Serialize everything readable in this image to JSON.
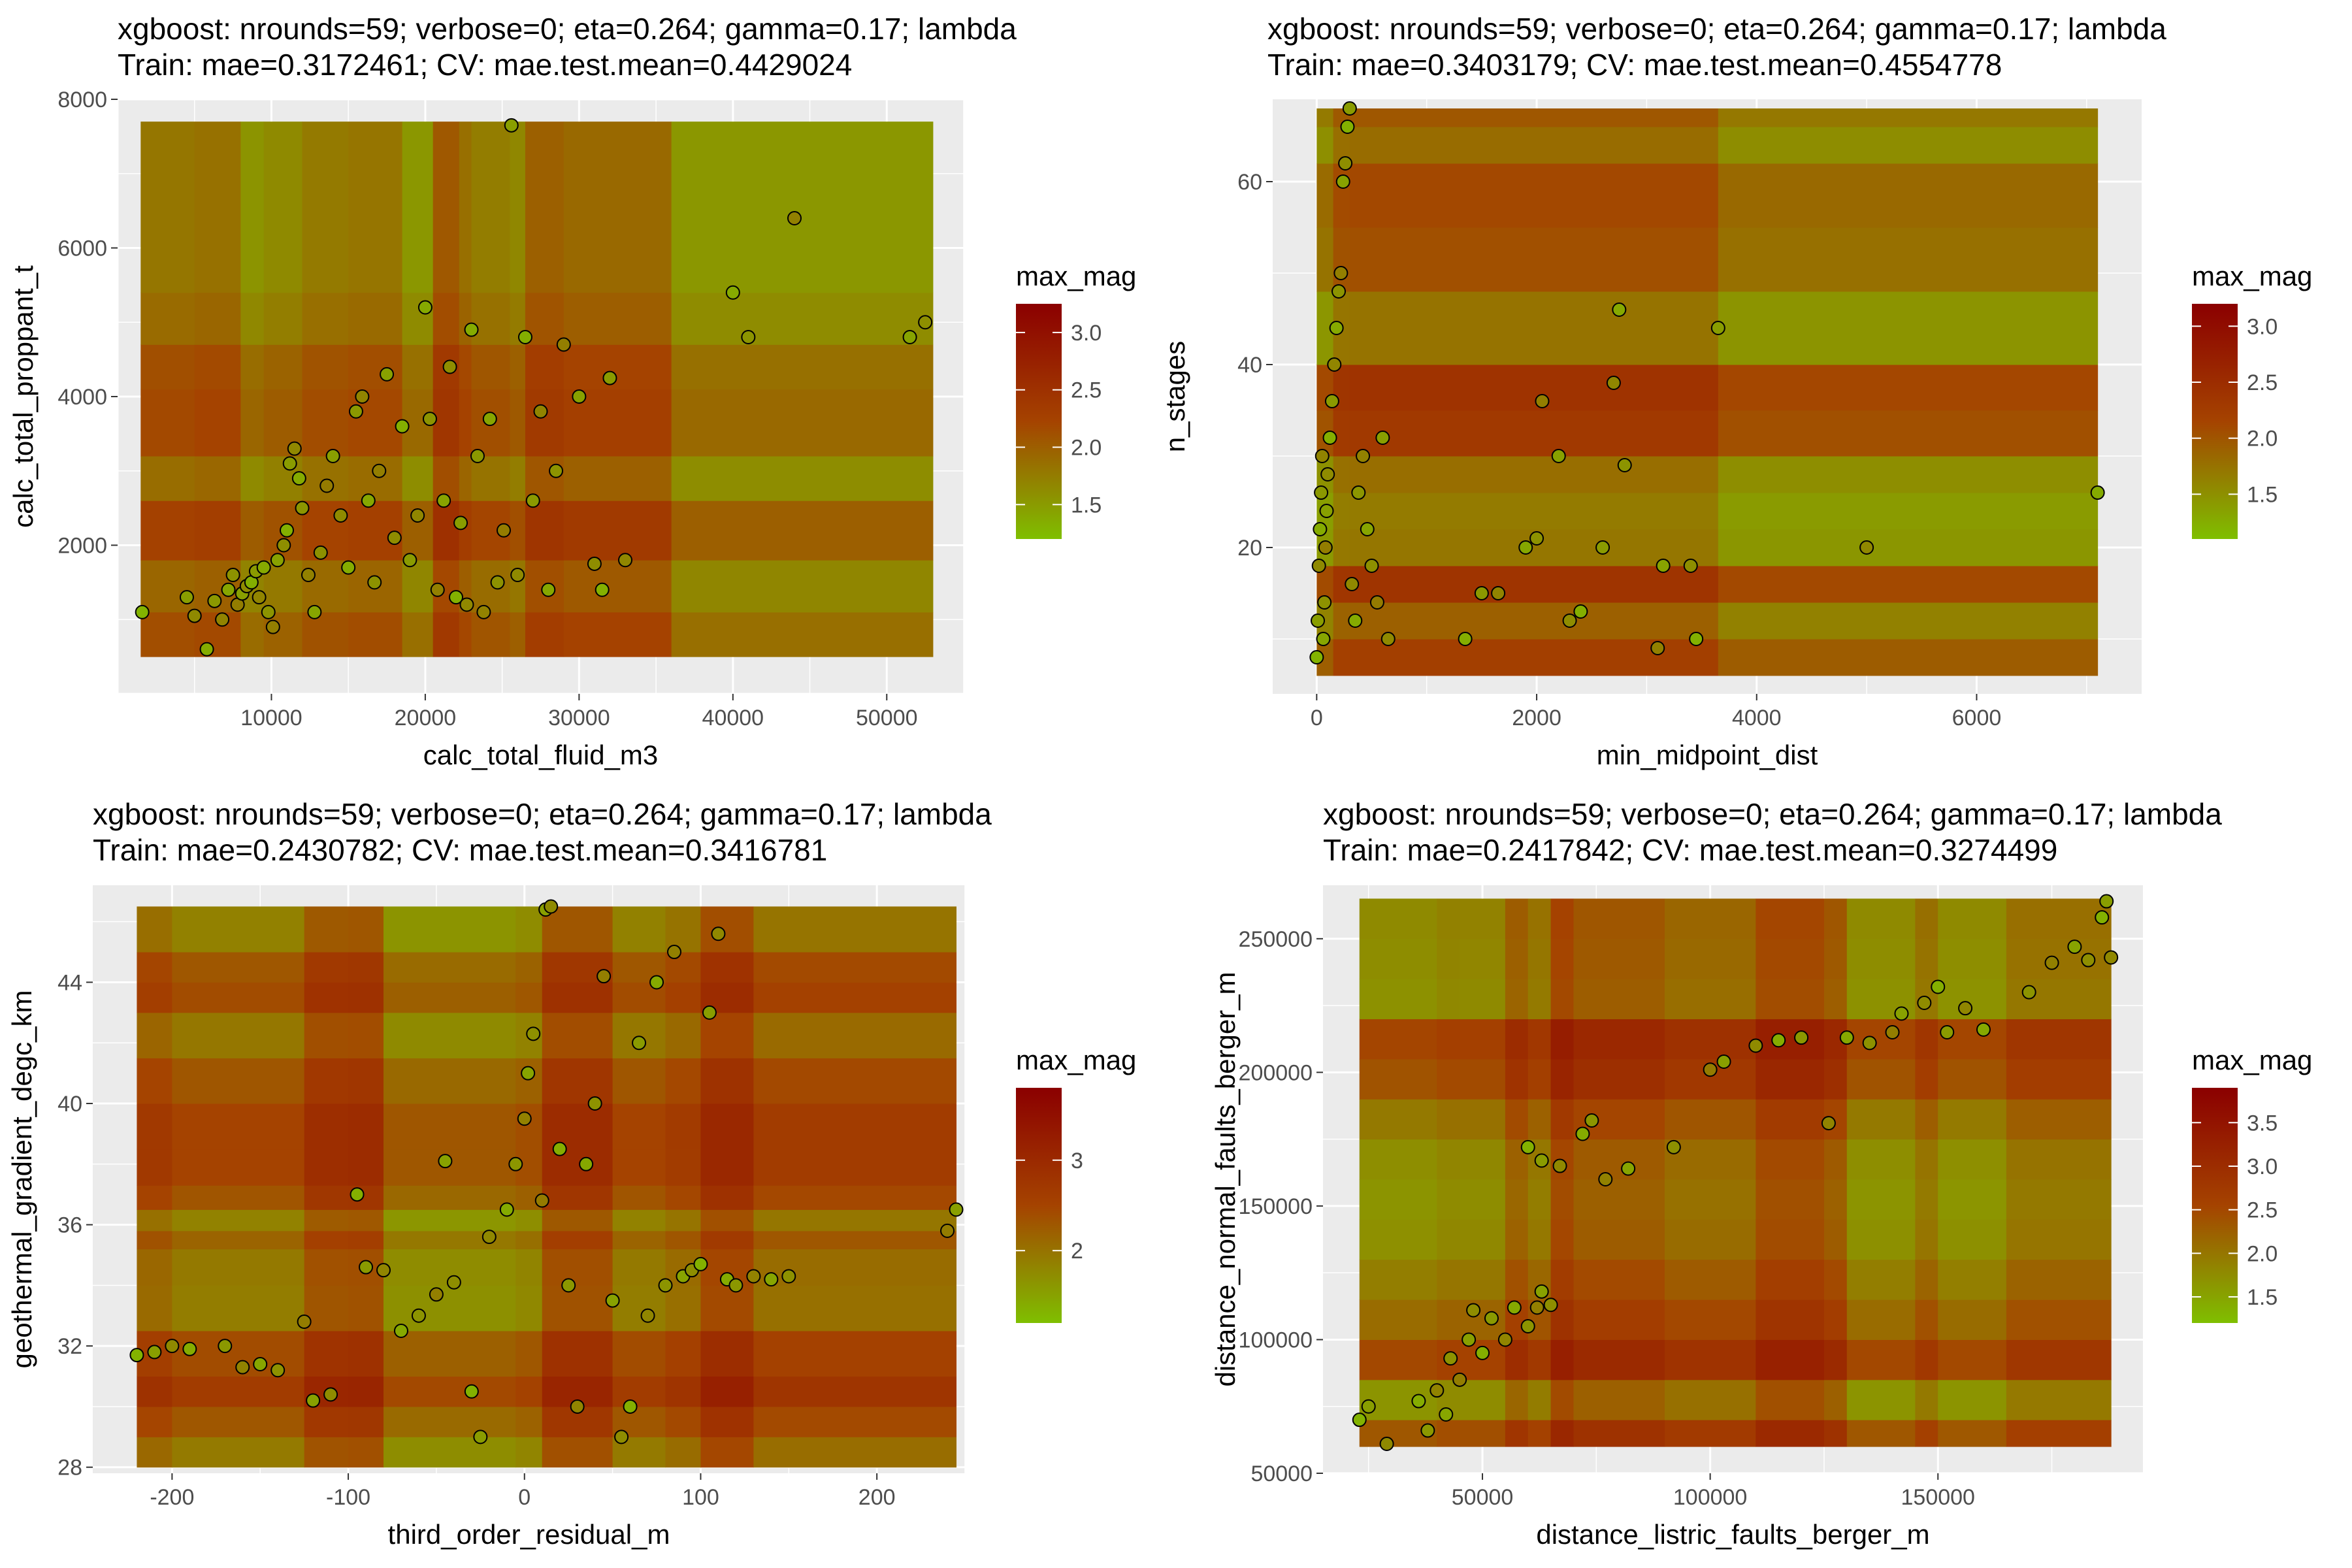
{
  "figure": {
    "colors": {
      "low": "#7fbf00",
      "mid": "#a54300",
      "high": "#8b0000",
      "panel": "#ebebeb",
      "grid": "#ffffff"
    }
  },
  "chart_data": [
    {
      "type": "heatmap",
      "title": "xgboost: nrounds=59; verbose=0; eta=0.264; gamma=0.17; lambda",
      "subtitle": "Train: mae=0.3172461; CV: mae.test.mean=0.4429024",
      "xlabel": "calc_total_fluid_m3",
      "ylabel": "calc_total_proppant_t",
      "xlim": [
        0,
        55000
      ],
      "ylim": [
        0,
        8000
      ],
      "xticks": [
        10000,
        20000,
        30000,
        40000,
        50000
      ],
      "yticks": [
        2000,
        4000,
        6000,
        8000
      ],
      "legend": {
        "title": "max_mag",
        "ticks": [
          1.5,
          2.0,
          2.5,
          3.0
        ],
        "tick_labels": [
          "1.5",
          "2.0",
          "2.5",
          "3.0"
        ],
        "range": [
          1.2,
          3.25
        ],
        "position": "right"
      },
      "points": [
        [
          1600,
          1100
        ],
        [
          4500,
          1300
        ],
        [
          5000,
          1050
        ],
        [
          5800,
          600
        ],
        [
          6300,
          1250
        ],
        [
          6800,
          1000
        ],
        [
          7200,
          1400
        ],
        [
          7500,
          1600
        ],
        [
          7800,
          1200
        ],
        [
          8100,
          1350
        ],
        [
          8400,
          1450
        ],
        [
          8700,
          1500
        ],
        [
          9000,
          1650
        ],
        [
          9200,
          1300
        ],
        [
          9500,
          1700
        ],
        [
          9800,
          1100
        ],
        [
          10100,
          900
        ],
        [
          10400,
          1800
        ],
        [
          10800,
          2000
        ],
        [
          11000,
          2200
        ],
        [
          11200,
          3100
        ],
        [
          11500,
          3300
        ],
        [
          11800,
          2900
        ],
        [
          12000,
          2500
        ],
        [
          12400,
          1600
        ],
        [
          12800,
          1100
        ],
        [
          13200,
          1900
        ],
        [
          13600,
          2800
        ],
        [
          14000,
          3200
        ],
        [
          14500,
          2400
        ],
        [
          15000,
          1700
        ],
        [
          15500,
          3800
        ],
        [
          15900,
          4000
        ],
        [
          16300,
          2600
        ],
        [
          16700,
          1500
        ],
        [
          17000,
          3000
        ],
        [
          17500,
          4300
        ],
        [
          18000,
          2100
        ],
        [
          18500,
          3600
        ],
        [
          19000,
          1800
        ],
        [
          19500,
          2400
        ],
        [
          20000,
          5200
        ],
        [
          20300,
          3700
        ],
        [
          20800,
          1400
        ],
        [
          21200,
          2600
        ],
        [
          21600,
          4400
        ],
        [
          22000,
          1300
        ],
        [
          22300,
          2300
        ],
        [
          22700,
          1200
        ],
        [
          23000,
          4900
        ],
        [
          23400,
          3200
        ],
        [
          23800,
          1100
        ],
        [
          24200,
          3700
        ],
        [
          24700,
          1500
        ],
        [
          25100,
          2200
        ],
        [
          25600,
          7650
        ],
        [
          26000,
          1600
        ],
        [
          26500,
          4800
        ],
        [
          27000,
          2600
        ],
        [
          27500,
          3800
        ],
        [
          28000,
          1400
        ],
        [
          28500,
          3000
        ],
        [
          29000,
          4700
        ],
        [
          30000,
          4000
        ],
        [
          31000,
          1750
        ],
        [
          31500,
          1400
        ],
        [
          32000,
          4250
        ],
        [
          33000,
          1800
        ],
        [
          40000,
          5400
        ],
        [
          41000,
          4800
        ],
        [
          44000,
          6400
        ],
        [
          51500,
          4800
        ],
        [
          52500,
          5000
        ]
      ],
      "xbreaks": [
        1500,
        5000,
        8000,
        9500,
        12000,
        15000,
        18500,
        20500,
        22200,
        23000,
        25500,
        26500,
        29000,
        36000,
        53000
      ],
      "ybreaks": [
        500,
        1100,
        1800,
        2600,
        3200,
        4100,
        4700,
        5400,
        7700
      ]
    },
    {
      "type": "heatmap",
      "title": "xgboost: nrounds=59; verbose=0; eta=0.264; gamma=0.17; lambda",
      "subtitle": "Train: mae=0.3403179; CV: mae.test.mean=0.4554778",
      "xlabel": "min_midpoint_dist",
      "ylabel": "n_stages",
      "xlim": [
        -400,
        7500
      ],
      "ylim": [
        4,
        69
      ],
      "xticks": [
        0,
        2000,
        4000,
        6000
      ],
      "yticks": [
        20,
        40,
        60
      ],
      "legend": {
        "title": "max_mag",
        "ticks": [
          1.5,
          2.0,
          2.5,
          3.0
        ],
        "tick_labels": [
          "1.5",
          "2.0",
          "2.5",
          "3.0"
        ],
        "range": [
          1.1,
          3.2
        ],
        "position": "right"
      },
      "points": [
        [
          0,
          8
        ],
        [
          10,
          12
        ],
        [
          20,
          18
        ],
        [
          30,
          22
        ],
        [
          40,
          26
        ],
        [
          50,
          30
        ],
        [
          60,
          10
        ],
        [
          70,
          14
        ],
        [
          80,
          20
        ],
        [
          90,
          24
        ],
        [
          100,
          28
        ],
        [
          120,
          32
        ],
        [
          140,
          36
        ],
        [
          160,
          40
        ],
        [
          180,
          44
        ],
        [
          200,
          48
        ],
        [
          220,
          50
        ],
        [
          240,
          60
        ],
        [
          260,
          62
        ],
        [
          280,
          66
        ],
        [
          300,
          68
        ],
        [
          320,
          16
        ],
        [
          350,
          12
        ],
        [
          380,
          26
        ],
        [
          420,
          30
        ],
        [
          460,
          22
        ],
        [
          500,
          18
        ],
        [
          550,
          14
        ],
        [
          600,
          32
        ],
        [
          650,
          10
        ],
        [
          1350,
          10
        ],
        [
          1500,
          15
        ],
        [
          1650,
          15
        ],
        [
          1900,
          20
        ],
        [
          2000,
          21
        ],
        [
          2050,
          36
        ],
        [
          2200,
          30
        ],
        [
          2300,
          12
        ],
        [
          2400,
          13
        ],
        [
          2600,
          20
        ],
        [
          2700,
          38
        ],
        [
          2750,
          46
        ],
        [
          2800,
          29
        ],
        [
          3100,
          9
        ],
        [
          3150,
          18
        ],
        [
          3400,
          18
        ],
        [
          3450,
          10
        ],
        [
          3650,
          44
        ],
        [
          5000,
          20
        ],
        [
          7100,
          26
        ]
      ],
      "xbreaks": [
        0,
        150,
        300,
        3650,
        7100
      ],
      "ybreaks": [
        6,
        10,
        14,
        18,
        22,
        26,
        30,
        35,
        40,
        48,
        55,
        62,
        66,
        68
      ]
    },
    {
      "type": "heatmap",
      "title": "xgboost: nrounds=59; verbose=0; eta=0.264; gamma=0.17; lambda",
      "subtitle": "Train: mae=0.2430782; CV: mae.test.mean=0.3416781",
      "xlabel": "third_order_residual_m",
      "ylabel": "geothermal_gradient_degc_km",
      "xlim": [
        -245,
        250
      ],
      "ylim": [
        27.8,
        47.2
      ],
      "xticks": [
        -200,
        -100,
        0,
        100,
        200
      ],
      "yticks": [
        28,
        32,
        36,
        40,
        44
      ],
      "legend": {
        "title": "max_mag",
        "ticks": [
          2,
          3
        ],
        "tick_labels": [
          "2",
          "3"
        ],
        "range": [
          1.2,
          3.8
        ],
        "position": "right"
      },
      "points": [
        [
          -220,
          31.7
        ],
        [
          -210,
          31.8
        ],
        [
          -200,
          32
        ],
        [
          -190,
          31.9
        ],
        [
          -170,
          32
        ],
        [
          -160,
          31.3
        ],
        [
          -150,
          31.4
        ],
        [
          -140,
          31.2
        ],
        [
          -125,
          32.8
        ],
        [
          -120,
          30.2
        ],
        [
          -110,
          30.4
        ],
        [
          -95,
          37
        ],
        [
          -90,
          34.6
        ],
        [
          -80,
          34.5
        ],
        [
          -70,
          32.5
        ],
        [
          -60,
          33
        ],
        [
          -50,
          33.7
        ],
        [
          -45,
          38.1
        ],
        [
          -40,
          34.1
        ],
        [
          -30,
          30.5
        ],
        [
          -25,
          29
        ],
        [
          -20,
          35.6
        ],
        [
          -10,
          36.5
        ],
        [
          -5,
          38
        ],
        [
          0,
          39.5
        ],
        [
          2,
          41
        ],
        [
          5,
          42.3
        ],
        [
          10,
          36.8
        ],
        [
          12,
          46.4
        ],
        [
          15,
          46.5
        ],
        [
          20,
          38.5
        ],
        [
          25,
          34
        ],
        [
          30,
          30
        ],
        [
          35,
          38
        ],
        [
          40,
          40
        ],
        [
          45,
          44.2
        ],
        [
          50,
          33.5
        ],
        [
          55,
          29
        ],
        [
          60,
          30
        ],
        [
          65,
          42
        ],
        [
          70,
          33
        ],
        [
          75,
          44
        ],
        [
          80,
          34
        ],
        [
          85,
          45
        ],
        [
          90,
          34.3
        ],
        [
          95,
          34.5
        ],
        [
          100,
          34.7
        ],
        [
          105,
          43
        ],
        [
          110,
          45.6
        ],
        [
          115,
          34.2
        ],
        [
          120,
          34
        ],
        [
          130,
          34.3
        ],
        [
          140,
          34.2
        ],
        [
          150,
          34.3
        ],
        [
          240,
          35.8
        ],
        [
          245,
          36.5
        ]
      ],
      "xbreaks": [
        -220,
        -200,
        -125,
        -100,
        -80,
        -5,
        10,
        50,
        80,
        100,
        130,
        245
      ],
      "ybreaks": [
        28,
        29,
        30,
        31,
        32.5,
        34,
        35.2,
        35.8,
        36.5,
        37.3,
        38.5,
        40,
        41.5,
        43,
        44,
        45,
        46.5
      ]
    },
    {
      "type": "heatmap",
      "title": "xgboost: nrounds=59; verbose=0; eta=0.264; gamma=0.17; lambda",
      "subtitle": "Train: mae=0.2417842; CV: mae.test.mean=0.3274499",
      "xlabel": "distance_listric_faults_berger_m",
      "ylabel": "distance_normal_faults_berger_m",
      "xlim": [
        15000,
        195000
      ],
      "ylim": [
        50000,
        270000
      ],
      "xticks": [
        50000,
        100000,
        150000
      ],
      "yticks": [
        50000,
        100000,
        150000,
        200000,
        250000
      ],
      "legend": {
        "title": "max_mag",
        "ticks": [
          1.5,
          2.0,
          2.5,
          3.0,
          3.5
        ],
        "tick_labels": [
          "1.5",
          "2.0",
          "2.5",
          "3.0",
          "3.5"
        ],
        "range": [
          1.2,
          3.9
        ],
        "position": "right"
      },
      "points": [
        [
          23000,
          70000
        ],
        [
          25000,
          75000
        ],
        [
          29000,
          61000
        ],
        [
          36000,
          77000
        ],
        [
          38000,
          66000
        ],
        [
          40000,
          81000
        ],
        [
          42000,
          72000
        ],
        [
          43000,
          93000
        ],
        [
          45000,
          85000
        ],
        [
          47000,
          100000
        ],
        [
          48000,
          111000
        ],
        [
          50000,
          95000
        ],
        [
          52000,
          108000
        ],
        [
          55000,
          100000
        ],
        [
          57000,
          112000
        ],
        [
          60000,
          105000
        ],
        [
          62000,
          112000
        ],
        [
          63000,
          118000
        ],
        [
          65000,
          113000
        ],
        [
          60000,
          172000
        ],
        [
          63000,
          167000
        ],
        [
          67000,
          165000
        ],
        [
          72000,
          177000
        ],
        [
          74000,
          182000
        ],
        [
          77000,
          160000
        ],
        [
          82000,
          164000
        ],
        [
          92000,
          172000
        ],
        [
          100000,
          201000
        ],
        [
          103000,
          204000
        ],
        [
          110000,
          210000
        ],
        [
          115000,
          212000
        ],
        [
          120000,
          213000
        ],
        [
          126000,
          181000
        ],
        [
          130000,
          213000
        ],
        [
          135000,
          211000
        ],
        [
          140000,
          215000
        ],
        [
          142000,
          222000
        ],
        [
          147000,
          226000
        ],
        [
          150000,
          232000
        ],
        [
          152000,
          215000
        ],
        [
          156000,
          224000
        ],
        [
          160000,
          216000
        ],
        [
          170000,
          230000
        ],
        [
          175000,
          241000
        ],
        [
          180000,
          247000
        ],
        [
          183000,
          242000
        ],
        [
          186000,
          258000
        ],
        [
          187000,
          264000
        ],
        [
          188000,
          243000
        ]
      ],
      "xbreaks": [
        23000,
        40000,
        45000,
        55000,
        60000,
        65000,
        70000,
        90000,
        110000,
        125000,
        130000,
        145000,
        150000,
        165000,
        188000
      ],
      "ybreaks": [
        60000,
        70000,
        85000,
        100000,
        115000,
        130000,
        145000,
        160000,
        175000,
        190000,
        205000,
        220000,
        235000,
        250000,
        265000
      ]
    }
  ]
}
